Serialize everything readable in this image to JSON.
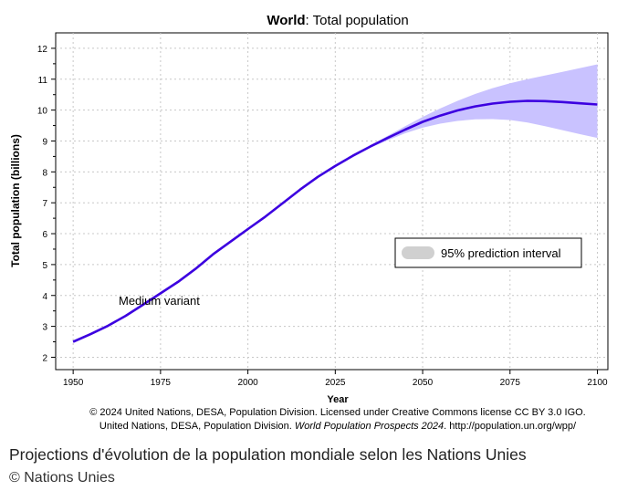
{
  "chart_data": {
    "type": "line",
    "title_bold": "World",
    "title_rest": ": Total population",
    "xlabel": "Year",
    "ylabel": "Total population (billions)",
    "xlim": [
      1945,
      2103
    ],
    "ylim": [
      1.6,
      12.5
    ],
    "x_ticks": [
      1950,
      1975,
      2000,
      2025,
      2050,
      2075,
      2100
    ],
    "y_ticks": [
      2,
      3,
      4,
      5,
      6,
      7,
      8,
      9,
      10,
      11,
      12
    ],
    "grid": true,
    "series": [
      {
        "name": "Medium variant",
        "color": "#3c00e0",
        "x": [
          1950,
          1955,
          1960,
          1965,
          1970,
          1975,
          1980,
          1985,
          1990,
          1995,
          2000,
          2005,
          2010,
          2015,
          2020,
          2025,
          2030,
          2035,
          2040,
          2045,
          2050,
          2055,
          2060,
          2065,
          2070,
          2075,
          2080,
          2085,
          2090,
          2095,
          2100
        ],
        "y": [
          2.5,
          2.75,
          3.02,
          3.34,
          3.7,
          4.07,
          4.44,
          4.86,
          5.33,
          5.74,
          6.15,
          6.55,
          6.99,
          7.43,
          7.84,
          8.19,
          8.52,
          8.82,
          9.1,
          9.37,
          9.62,
          9.82,
          9.99,
          10.12,
          10.21,
          10.27,
          10.3,
          10.29,
          10.26,
          10.22,
          10.18
        ]
      }
    ],
    "interval": {
      "name": "95% prediction interval",
      "color": "#c9c2ff",
      "x": [
        2035,
        2040,
        2045,
        2050,
        2055,
        2060,
        2065,
        2070,
        2075,
        2080,
        2085,
        2090,
        2095,
        2100
      ],
      "lower": [
        8.78,
        9.02,
        9.25,
        9.43,
        9.56,
        9.65,
        9.7,
        9.71,
        9.68,
        9.6,
        9.48,
        9.35,
        9.22,
        9.1
      ],
      "upper": [
        8.85,
        9.17,
        9.48,
        9.78,
        10.05,
        10.3,
        10.52,
        10.71,
        10.87,
        11.0,
        11.12,
        11.24,
        11.36,
        11.48
      ]
    },
    "legend": {
      "position": "middle-right",
      "label": "95% prediction interval"
    },
    "annotation": "Medium variant"
  },
  "source_line_1": "© 2024 United Nations, DESA, Population Division. Licensed under Creative Commons license CC BY 3.0 IGO.",
  "source_line_2_a": "United Nations, DESA, Population Division. ",
  "source_line_2_italic": "World Population Prospects 2024",
  "source_line_2_b": ". http://population.un.org/wpp/",
  "caption": "Projections d'évolution de la population mondiale selon les Nations Unies",
  "credit": "© Nations Unies"
}
